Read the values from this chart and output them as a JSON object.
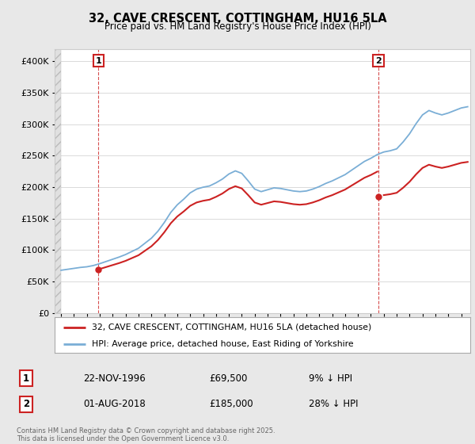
{
  "title": "32, CAVE CRESCENT, COTTINGHAM, HU16 5LA",
  "subtitle": "Price paid vs. HM Land Registry's House Price Index (HPI)",
  "legend_line1": "32, CAVE CRESCENT, COTTINGHAM, HU16 5LA (detached house)",
  "legend_line2": "HPI: Average price, detached house, East Riding of Yorkshire",
  "annotation1_date": "22-NOV-1996",
  "annotation1_price": "£69,500",
  "annotation1_pct": "9% ↓ HPI",
  "annotation2_date": "01-AUG-2018",
  "annotation2_price": "£185,000",
  "annotation2_pct": "28% ↓ HPI",
  "footer": "Contains HM Land Registry data © Crown copyright and database right 2025.\nThis data is licensed under the Open Government Licence v3.0.",
  "sale1_x": 1996.9,
  "sale1_y": 69500,
  "sale2_x": 2018.58,
  "sale2_y": 185000,
  "hpi_color": "#7aaed6",
  "price_color": "#cc2222",
  "background_color": "#e8e8e8",
  "plot_bg_color": "#ffffff",
  "hatch_color": "#d0d0d0",
  "grid_color": "#cccccc",
  "ylim": [
    0,
    420000
  ],
  "xlim_start": 1993.5,
  "xlim_end": 2025.7,
  "hpi_data": [
    [
      1994.0,
      68000
    ],
    [
      1994.5,
      69500
    ],
    [
      1995.0,
      71000
    ],
    [
      1995.5,
      72500
    ],
    [
      1996.0,
      73500
    ],
    [
      1996.5,
      75500
    ],
    [
      1997.0,
      78500
    ],
    [
      1997.5,
      82000
    ],
    [
      1998.0,
      85500
    ],
    [
      1998.5,
      89000
    ],
    [
      1999.0,
      93000
    ],
    [
      1999.5,
      98000
    ],
    [
      2000.0,
      103000
    ],
    [
      2000.5,
      111000
    ],
    [
      2001.0,
      119000
    ],
    [
      2001.5,
      130000
    ],
    [
      2002.0,
      144000
    ],
    [
      2002.5,
      160000
    ],
    [
      2003.0,
      172000
    ],
    [
      2003.5,
      181000
    ],
    [
      2004.0,
      191000
    ],
    [
      2004.5,
      197000
    ],
    [
      2005.0,
      200000
    ],
    [
      2005.5,
      202000
    ],
    [
      2006.0,
      207000
    ],
    [
      2006.5,
      213000
    ],
    [
      2007.0,
      221000
    ],
    [
      2007.5,
      226000
    ],
    [
      2008.0,
      222000
    ],
    [
      2008.5,
      210000
    ],
    [
      2009.0,
      197000
    ],
    [
      2009.5,
      193000
    ],
    [
      2010.0,
      196000
    ],
    [
      2010.5,
      199000
    ],
    [
      2011.0,
      198000
    ],
    [
      2011.5,
      196000
    ],
    [
      2012.0,
      194000
    ],
    [
      2012.5,
      193000
    ],
    [
      2013.0,
      194000
    ],
    [
      2013.5,
      197000
    ],
    [
      2014.0,
      201000
    ],
    [
      2014.5,
      206000
    ],
    [
      2015.0,
      210000
    ],
    [
      2015.5,
      215000
    ],
    [
      2016.0,
      220000
    ],
    [
      2016.5,
      227000
    ],
    [
      2017.0,
      234000
    ],
    [
      2017.5,
      241000
    ],
    [
      2018.0,
      246000
    ],
    [
      2018.5,
      252000
    ],
    [
      2019.0,
      256000
    ],
    [
      2019.5,
      258000
    ],
    [
      2020.0,
      261000
    ],
    [
      2020.5,
      272000
    ],
    [
      2021.0,
      285000
    ],
    [
      2021.5,
      301000
    ],
    [
      2022.0,
      315000
    ],
    [
      2022.5,
      322000
    ],
    [
      2023.0,
      318000
    ],
    [
      2023.5,
      315000
    ],
    [
      2024.0,
      318000
    ],
    [
      2024.5,
      322000
    ],
    [
      2025.0,
      326000
    ],
    [
      2025.5,
      328000
    ]
  ]
}
